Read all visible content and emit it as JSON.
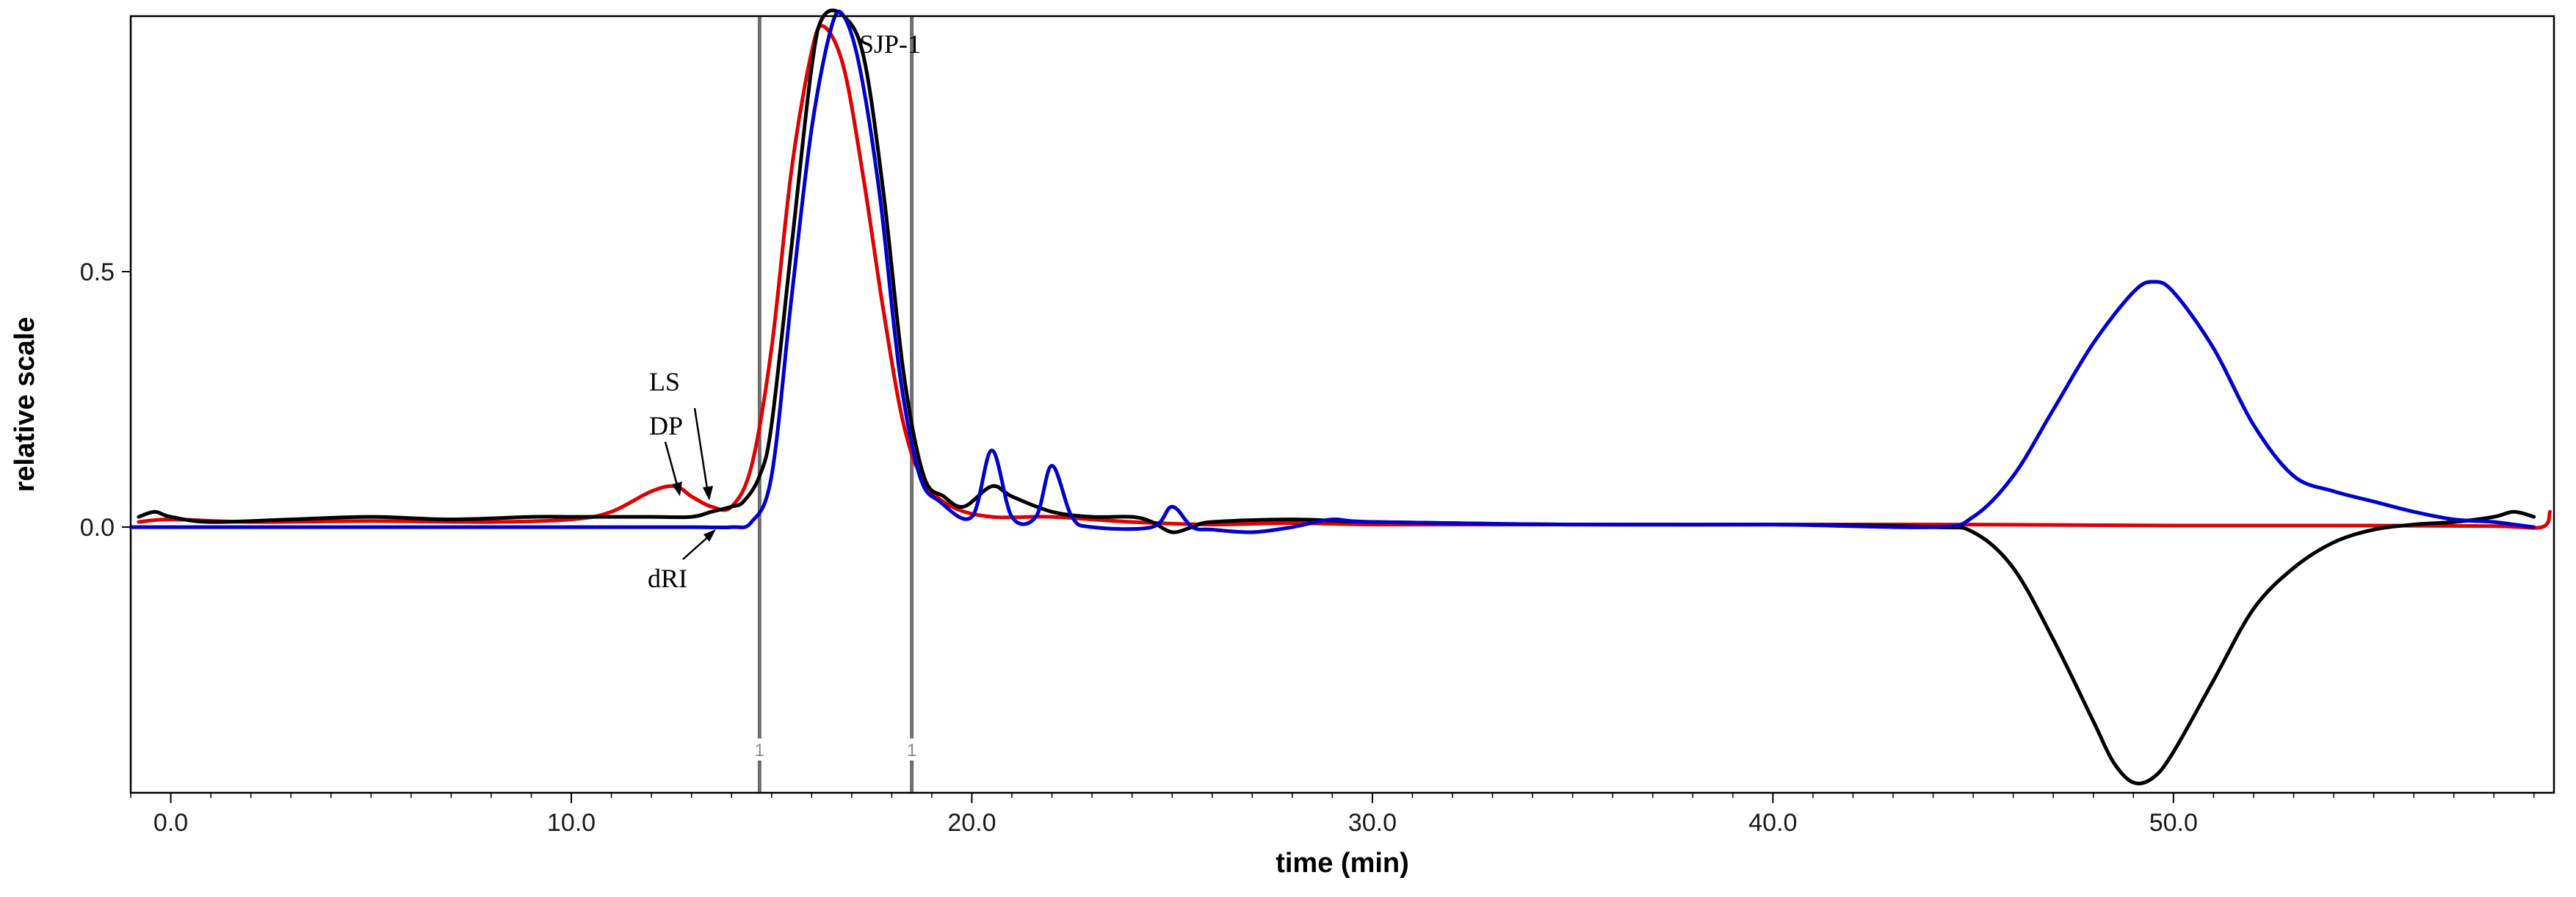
{
  "chart_data": {
    "type": "line",
    "title": "",
    "xlabel": "time (min)",
    "ylabel": "relative scale",
    "xlim": [
      -1,
      59.5
    ],
    "ylim": [
      -0.52,
      1.0
    ],
    "xticks": [
      0,
      10,
      20,
      30,
      40,
      50
    ],
    "xtick_labels": [
      "0.0",
      "10.0",
      "20.0",
      "30.0",
      "40.0",
      "50.0"
    ],
    "yticks": [
      0.5,
      0.0
    ],
    "ytick_labels": [
      "0.5",
      "0.0"
    ],
    "grid": false,
    "colors": {
      "LS": "#e00000",
      "DP": "#000000",
      "dRI": "#0000cc",
      "marker": "#6e6e6e"
    },
    "series": [
      {
        "name": "LS",
        "x": [
          -0.8,
          0,
          2,
          5,
          8,
          10,
          11,
          12,
          12.6,
          13,
          13.5,
          14,
          14.5,
          15,
          15.5,
          16,
          16.3,
          16.8,
          17.3,
          17.8,
          18.3,
          18.8,
          19.5,
          20.5,
          22,
          24,
          26,
          28,
          30,
          35,
          40,
          45,
          50,
          55,
          58,
          59.2,
          59.4
        ],
        "y": [
          0.01,
          0.015,
          0.01,
          0.012,
          0.01,
          0.015,
          0.03,
          0.07,
          0.08,
          0.06,
          0.04,
          0.04,
          0.12,
          0.35,
          0.7,
          0.93,
          0.98,
          0.9,
          0.68,
          0.42,
          0.2,
          0.09,
          0.04,
          0.02,
          0.02,
          0.01,
          0.005,
          0.008,
          0.005,
          0.005,
          0.005,
          0.005,
          0.003,
          0.003,
          0.002,
          0.0,
          0.03
        ]
      },
      {
        "name": "DP",
        "x": [
          -0.8,
          -0.4,
          0,
          1,
          3,
          5,
          7,
          9,
          10,
          11,
          12,
          13,
          13.5,
          14,
          14.3,
          14.7,
          15,
          15.5,
          16,
          16.3,
          16.8,
          17.3,
          17.8,
          18.3,
          18.8,
          19.3,
          19.8,
          20.5,
          21,
          22,
          23,
          24,
          24.5,
          25,
          25.5,
          26,
          28,
          30,
          35,
          40,
          44,
          45,
          46,
          47,
          48,
          48.5,
          49,
          49.5,
          50,
          51,
          52,
          53,
          54,
          55,
          56,
          57,
          58,
          58.5,
          59
        ],
        "y": [
          0.02,
          0.03,
          0.02,
          0.01,
          0.015,
          0.02,
          0.015,
          0.02,
          0.02,
          0.02,
          0.02,
          0.02,
          0.03,
          0.04,
          0.05,
          0.1,
          0.2,
          0.55,
          0.9,
          1.0,
          1.0,
          0.92,
          0.65,
          0.3,
          0.1,
          0.06,
          0.04,
          0.08,
          0.06,
          0.03,
          0.02,
          0.02,
          0.01,
          -0.01,
          0.0,
          0.01,
          0.015,
          0.01,
          0.005,
          0.005,
          0.0,
          -0.01,
          -0.08,
          -0.22,
          -0.38,
          -0.46,
          -0.5,
          -0.49,
          -0.44,
          -0.3,
          -0.16,
          -0.08,
          -0.03,
          -0.005,
          0.005,
          0.01,
          0.02,
          0.03,
          0.02
        ]
      },
      {
        "name": "dRI",
        "x": [
          -1,
          0,
          5,
          10,
          13,
          14,
          14.5,
          15,
          15.5,
          16,
          16.5,
          16.8,
          17.2,
          17.7,
          18.2,
          18.7,
          19.2,
          20,
          20.5,
          21,
          21.6,
          22,
          22.5,
          23,
          24.5,
          25,
          25.5,
          26,
          27,
          28,
          29,
          30,
          35,
          40,
          44,
          45,
          46,
          47,
          48,
          49,
          49.5,
          50,
          51,
          52,
          53,
          54,
          55,
          56,
          57,
          58,
          58.5,
          59
        ],
        "y": [
          0.0,
          0.0,
          0.0,
          0.0,
          0.0,
          0.0,
          0.01,
          0.1,
          0.45,
          0.78,
          0.98,
          1.0,
          0.9,
          0.65,
          0.3,
          0.1,
          0.05,
          0.02,
          0.15,
          0.02,
          0.02,
          0.12,
          0.02,
          0.0,
          0.0,
          0.04,
          0.0,
          -0.005,
          -0.01,
          0.0,
          0.015,
          0.01,
          0.005,
          0.005,
          0.0,
          0.02,
          0.1,
          0.23,
          0.36,
          0.46,
          0.48,
          0.46,
          0.35,
          0.2,
          0.1,
          0.07,
          0.05,
          0.03,
          0.015,
          0.01,
          0.005,
          0.0
        ]
      }
    ],
    "markers": [
      {
        "x": 14.7,
        "label": "1"
      },
      {
        "x": 18.5,
        "label": "1"
      }
    ],
    "annotations": [
      {
        "text": "LS"
      },
      {
        "text": "DP"
      },
      {
        "text": "dRI"
      },
      {
        "text": "SJP-1"
      }
    ]
  }
}
